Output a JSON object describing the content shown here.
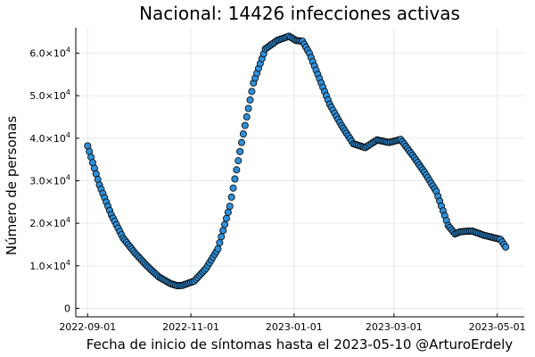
{
  "chart_data": {
    "type": "scatter",
    "title": "Nacional:  14426 infecciones activas",
    "xlabel": "Fecha de inicio de síntomas hasta el 2023-05-10 @ArturoErdely",
    "ylabel": "Número de personas",
    "x_range": [
      "2022-08-25",
      "2023-05-17"
    ],
    "ylim": [
      -2000,
      66000
    ],
    "grid": true,
    "legend": "none",
    "marker_color": "#2f8fd8",
    "x_ticks": [
      {
        "date": "2022-09-01",
        "label": "2022-09-01"
      },
      {
        "date": "2022-11-01",
        "label": "2022-11-01"
      },
      {
        "date": "2023-01-01",
        "label": "2023-01-01"
      },
      {
        "date": "2023-03-01",
        "label": "2023-03-01"
      },
      {
        "date": "2023-05-01",
        "label": "2023-05-01"
      }
    ],
    "y_ticks": [
      {
        "value": 0,
        "mantissa": "0",
        "exp": ""
      },
      {
        "value": 10000,
        "mantissa": "1.0×10",
        "exp": "4"
      },
      {
        "value": 20000,
        "mantissa": "2.0×10",
        "exp": "4"
      },
      {
        "value": 30000,
        "mantissa": "3.0×10",
        "exp": "4"
      },
      {
        "value": 40000,
        "mantissa": "4.0×10",
        "exp": "4"
      },
      {
        "value": 50000,
        "mantissa": "5.0×10",
        "exp": "4"
      },
      {
        "value": 60000,
        "mantissa": "6.0×10",
        "exp": "4"
      }
    ],
    "series": [
      {
        "x": [
          "2022-09-01",
          "2022-09-08",
          "2022-09-15",
          "2022-09-22",
          "2022-09-29",
          "2022-10-06",
          "2022-10-13",
          "2022-10-20",
          "2022-10-24",
          "2022-10-27",
          "2022-11-03",
          "2022-11-10",
          "2022-11-17",
          "2022-11-24",
          "2022-12-01",
          "2022-12-08",
          "2022-12-15",
          "2022-12-22",
          "2022-12-29",
          "2023-01-02",
          "2023-01-06",
          "2023-01-10",
          "2023-01-16",
          "2023-01-22",
          "2023-01-29",
          "2023-02-05",
          "2023-02-12",
          "2023-02-19",
          "2023-02-26",
          "2023-03-05",
          "2023-03-12",
          "2023-03-19",
          "2023-03-26",
          "2023-04-02",
          "2023-04-06",
          "2023-04-09",
          "2023-04-16",
          "2023-04-23",
          "2023-04-30",
          "2023-05-03",
          "2023-05-06"
        ],
        "y": [
          38200,
          29000,
          22000,
          16500,
          13000,
          10000,
          7400,
          5800,
          5300,
          5400,
          6400,
          9400,
          14000,
          24000,
          39000,
          53000,
          61000,
          63000,
          64000,
          63000,
          62800,
          60000,
          54000,
          48000,
          43000,
          38700,
          37800,
          39600,
          39000,
          39700,
          36000,
          32000,
          27500,
          19500,
          17500,
          18000,
          18200,
          17200,
          16500,
          16200,
          14426
        ]
      }
    ]
  }
}
